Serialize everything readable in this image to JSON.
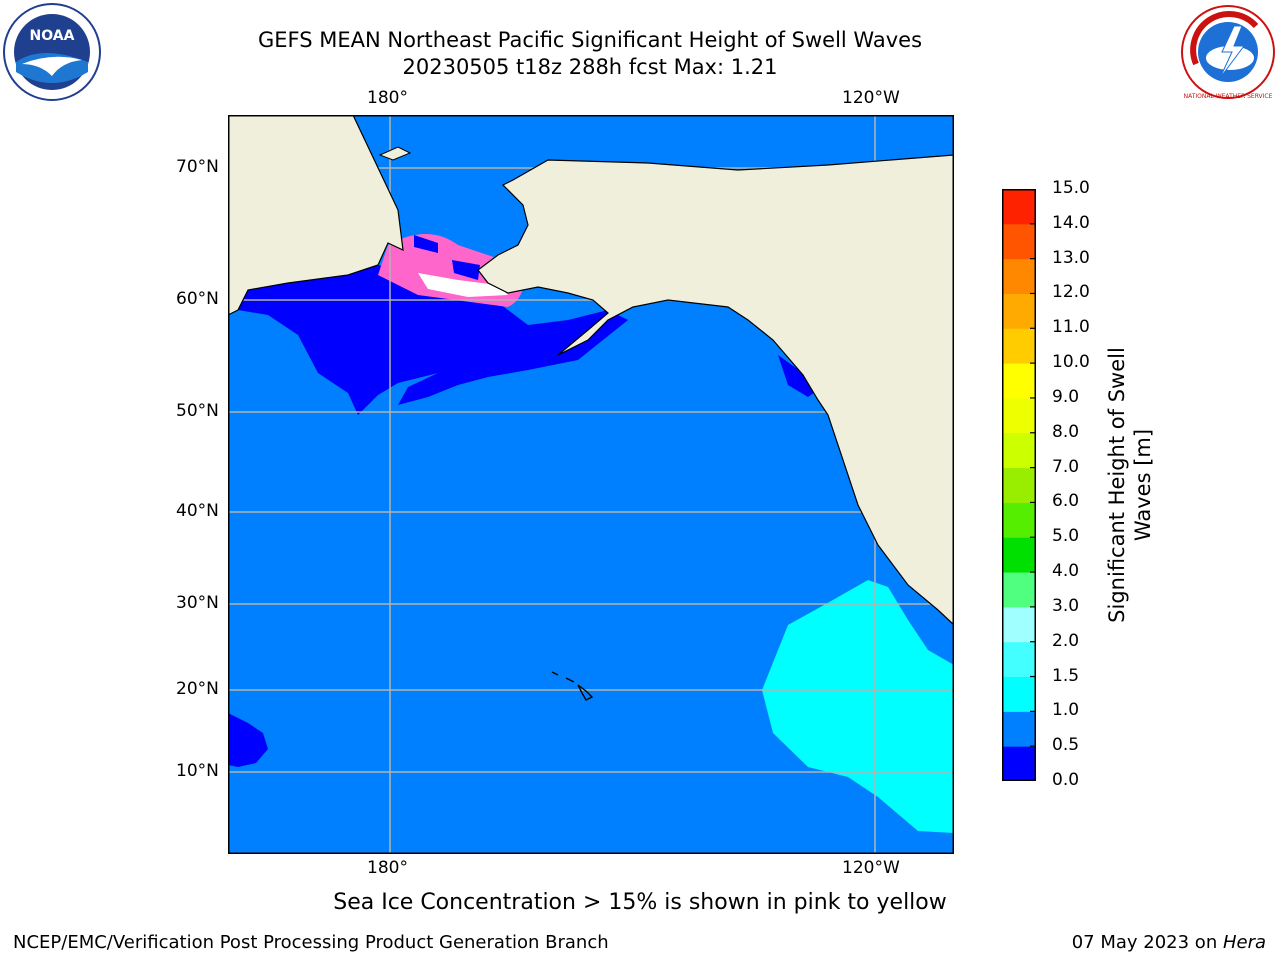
{
  "title": {
    "line1": "GEFS MEAN Northeast Pacific Significant Height of Swell Waves",
    "line2": "20230505 t18z 288h fcst   Max: 1.21"
  },
  "map": {
    "lon_labels": [
      "180°",
      "120°W"
    ],
    "lat_labels": [
      "70°N",
      "60°N",
      "50°N",
      "40°N",
      "30°N",
      "20°N",
      "10°N"
    ],
    "colors": {
      "ocean": "#0080ff",
      "low": "#0000ff",
      "mid": "#00ffff",
      "land": "#efefdc",
      "grid": "#b4b4b4"
    }
  },
  "colorbar": {
    "label": "Significant Height of Swell Waves [m]",
    "ticks": [
      "0.0",
      "0.5",
      "1.0",
      "1.5",
      "2.0",
      "3.0",
      "4.0",
      "5.0",
      "6.0",
      "7.0",
      "8.0",
      "9.0",
      "10.0",
      "11.0",
      "12.0",
      "13.0",
      "14.0",
      "15.0"
    ],
    "colors": [
      "#0000ff",
      "#0080ff",
      "#00ffff",
      "#44ffff",
      "#a0ffff",
      "#50ff80",
      "#00e000",
      "#55ee00",
      "#99ee00",
      "#ccff00",
      "#eeff00",
      "#ffff00",
      "#ffcc00",
      "#ffaa00",
      "#ff8800",
      "#ff5500",
      "#ff2200"
    ]
  },
  "note": "Sea Ice Concentration > 15% is shown in pink to yellow",
  "footer": {
    "left": "NCEP/EMC/Verification Post Processing Product Generation Branch",
    "right_prefix": "07 May 2023 on ",
    "right_host": "Hera"
  },
  "logos": {
    "noaa_text": "NOAA",
    "nws_text": "NATIONAL WEATHER SERVICE"
  }
}
